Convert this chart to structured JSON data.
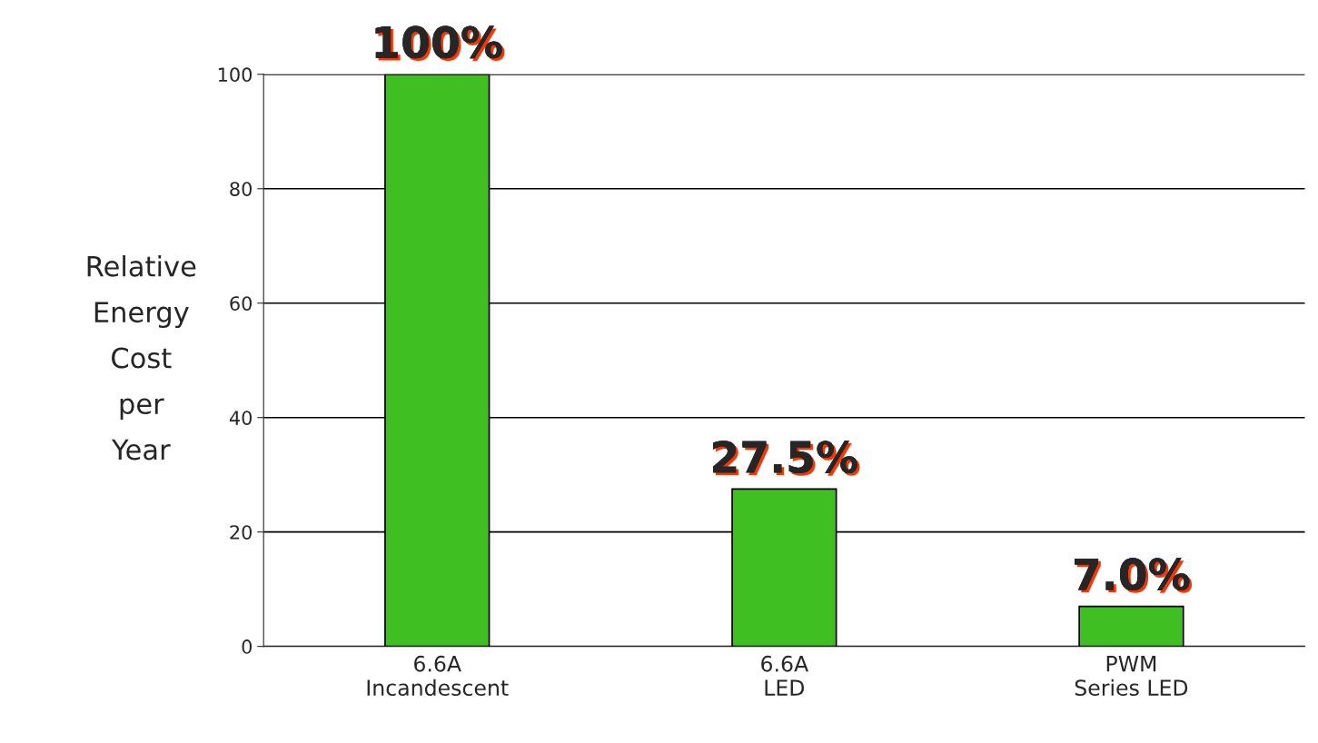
{
  "chart_data": {
    "type": "bar",
    "ylabel": "Relative\nEnergy\nCost\nper\nYear",
    "categories": [
      "6.6A\nIncandescent",
      "6.6A\nLED",
      "PWM\nSeries LED"
    ],
    "values": [
      100,
      27.5,
      7.0
    ],
    "value_labels": [
      "100%",
      "27.5%",
      "7.0%"
    ],
    "color": "#3fbf22",
    "ylim": [
      0,
      100
    ],
    "yticks": [
      0,
      20,
      40,
      60,
      80,
      100
    ],
    "grid": "y"
  }
}
